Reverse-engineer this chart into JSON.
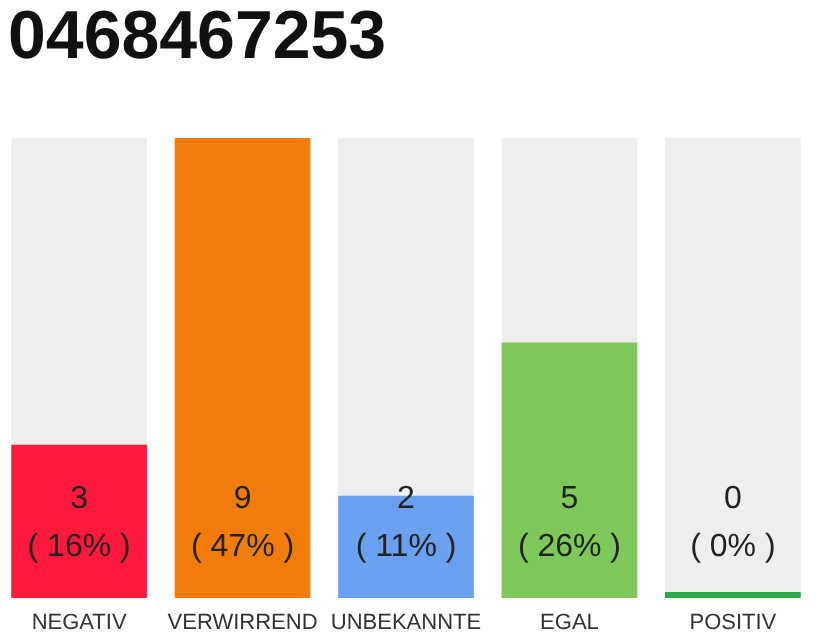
{
  "chart_data": {
    "type": "bar",
    "title": "0468467253",
    "categories": [
      "NEGATIV",
      "VERWIRREND",
      "UNBEKANNTE",
      "EGAL",
      "POSITIV"
    ],
    "values": [
      3,
      9,
      2,
      5,
      0
    ],
    "colors": [
      "#ff1a3c",
      "#f07d0a",
      "#6aa0f0",
      "#7ec85a",
      "#2aa84a"
    ],
    "value_labels": [
      "3\n( 16% )",
      "9\n( 47% )",
      "2\n( 11% )",
      "5\n( 26% )",
      "0\n( 0% )"
    ],
    "tick_labels": "x",
    "grid": false,
    "legend": false
  }
}
